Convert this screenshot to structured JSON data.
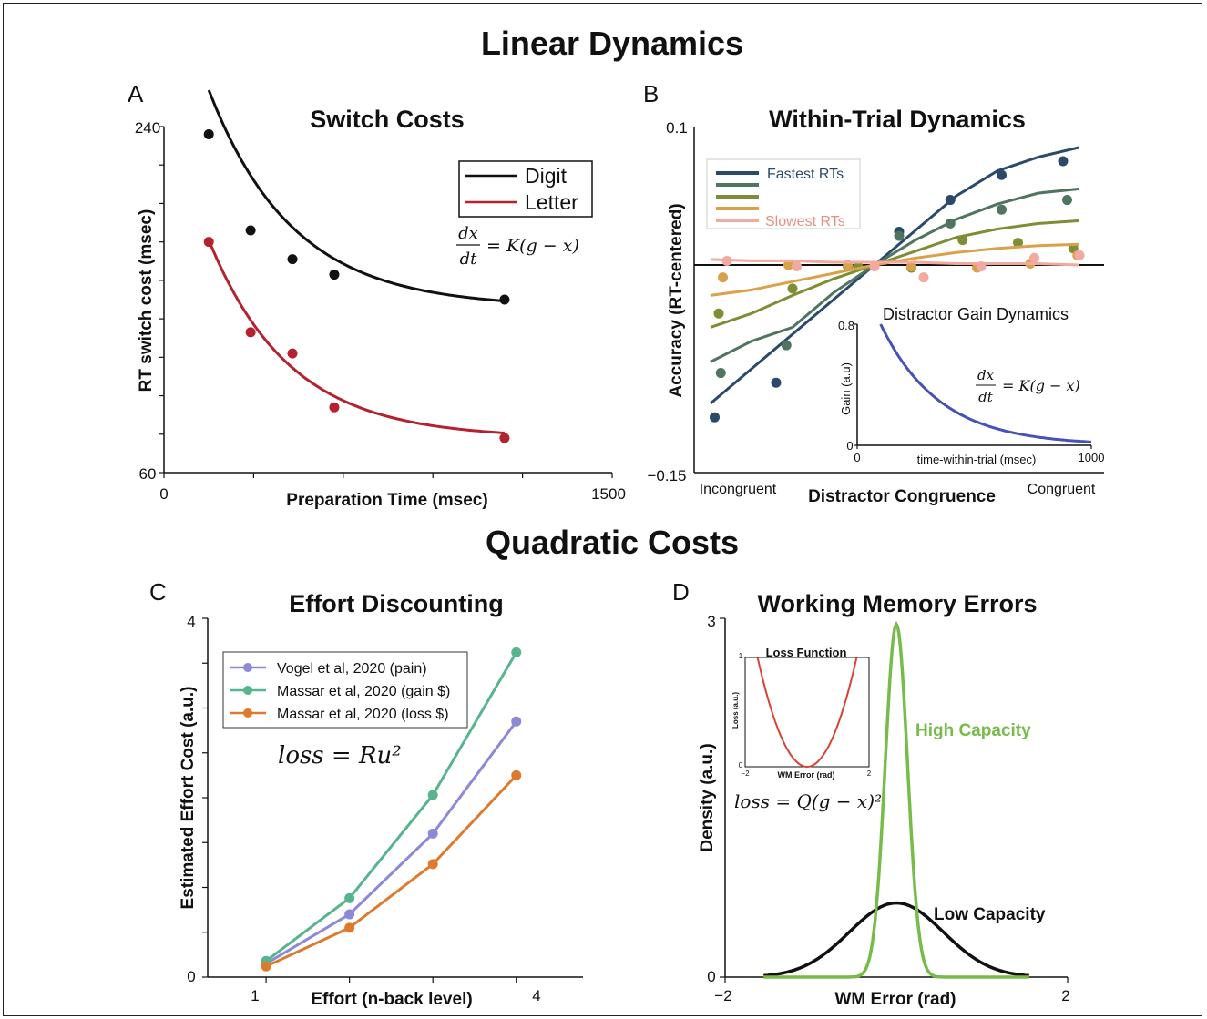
{
  "section_titles": {
    "top": "Linear Dynamics",
    "bottom": "Quadratic Costs"
  },
  "chart_data": [
    {
      "panel": "A",
      "type": "scatter",
      "title": "Switch Costs",
      "xlabel": "Preparation Time (msec)",
      "ylabel": "RT switch cost (msec)",
      "xlim": [
        0,
        1500
      ],
      "ylim": [
        60,
        240
      ],
      "xticks": [
        "0",
        "1500"
      ],
      "yticks": [
        "60",
        "240"
      ],
      "equation": {
        "num": "dx",
        "den": "dt",
        "rhs": "= K(g − x)"
      },
      "legend_position": "top-right",
      "series": [
        {
          "name": "Digit",
          "color": "#111111",
          "points": [
            [
              150,
              236
            ],
            [
              290,
              186
            ],
            [
              430,
              171
            ],
            [
              570,
              163
            ],
            [
              1140,
              150
            ]
          ],
          "fit": {
            "c": 146,
            "a": 113,
            "tau": 280,
            "x0": 150,
            "x1": 1140
          }
        },
        {
          "name": "Letter",
          "color": "#b5212e",
          "points": [
            [
              150,
              180
            ],
            [
              290,
              133
            ],
            [
              430,
              122
            ],
            [
              570,
              94
            ],
            [
              1140,
              78
            ]
          ],
          "fit": {
            "c": 78,
            "a": 103,
            "tau": 270,
            "x0": 150,
            "x1": 1140
          }
        }
      ]
    },
    {
      "panel": "B",
      "type": "line",
      "title": "Within-Trial Dynamics",
      "xlabel": "Distractor Congruence",
      "ylabel": "Accuracy (RT-centered)",
      "xlim": [
        0,
        1
      ],
      "ylim": [
        -0.15,
        0.1
      ],
      "yticks": [
        "0.1",
        "−0.15"
      ],
      "x_end_labels": [
        "Incongruent",
        "Congruent"
      ],
      "legend_position": "top-left",
      "legend": [
        "Fastest RTs",
        "",
        "",
        "",
        "Slowest RTs"
      ],
      "series": [
        {
          "color": "#2b4a6b",
          "line": [
            -0.1,
            -0.075,
            -0.05,
            -0.025,
            0.0,
            0.025,
            0.05,
            0.068,
            0.078,
            0.085
          ],
          "dots": [
            [
              0.05,
              -0.11
            ],
            [
              0.2,
              -0.085
            ],
            [
              0.375,
              -0.001
            ],
            [
              0.5,
              0.024
            ],
            [
              0.625,
              0.047
            ],
            [
              0.75,
              0.065
            ],
            [
              0.9,
              0.075
            ]
          ]
        },
        {
          "color": "#4f7560",
          "line": [
            -0.07,
            -0.055,
            -0.045,
            -0.02,
            0.0,
            0.018,
            0.033,
            0.044,
            0.052,
            0.055
          ],
          "dots": [
            [
              0.065,
              -0.078
            ],
            [
              0.225,
              -0.058
            ],
            [
              0.375,
              -0.001
            ],
            [
              0.5,
              0.021
            ],
            [
              0.625,
              0.03
            ],
            [
              0.75,
              0.04
            ],
            [
              0.91,
              0.047
            ]
          ]
        },
        {
          "color": "#7d8e36",
          "line": [
            -0.045,
            -0.035,
            -0.022,
            -0.01,
            0.0,
            0.01,
            0.02,
            0.026,
            0.03,
            0.032
          ],
          "dots": [
            [
              0.06,
              -0.035
            ],
            [
              0.24,
              -0.017
            ],
            [
              0.4,
              -0.001
            ],
            [
              0.53,
              -0.002
            ],
            [
              0.655,
              0.018
            ],
            [
              0.79,
              0.016
            ],
            [
              0.925,
              0.012
            ]
          ]
        },
        {
          "color": "#d9a24a",
          "line": [
            -0.022,
            -0.018,
            -0.012,
            -0.006,
            0.0,
            0.005,
            0.009,
            0.012,
            0.014,
            0.015
          ],
          "dots": [
            [
              0.07,
              -0.009
            ],
            [
              0.23,
              0.0
            ],
            [
              0.375,
              0.0
            ],
            [
              0.53,
              -0.001
            ],
            [
              0.69,
              -0.002
            ],
            [
              0.82,
              0.001
            ],
            [
              0.935,
              0.007
            ]
          ]
        },
        {
          "color": "#f2aaa0",
          "line": [
            0.004,
            0.003,
            0.003,
            0.002,
            0.002,
            0.002,
            0.001,
            0.001,
            0.001,
            0.0
          ],
          "dots": [
            [
              0.08,
              0.003
            ],
            [
              0.25,
              -0.001
            ],
            [
              0.44,
              -0.001
            ],
            [
              0.56,
              -0.009
            ],
            [
              0.7,
              -0.001
            ],
            [
              0.83,
              0.005
            ],
            [
              0.94,
              0.007
            ]
          ]
        }
      ],
      "inset": {
        "title": "Distractor Gain Dynamics",
        "xlabel": "time-within-trial (msec)",
        "ylabel": "Gain (a.u)",
        "xlim": [
          0,
          1000
        ],
        "ylim": [
          0,
          0.8
        ],
        "xticks": [
          "0",
          "1000"
        ],
        "yticks": [
          "0.8",
          "0"
        ],
        "equation": {
          "num": "dx",
          "den": "dt",
          "rhs": "= K(g − x)"
        },
        "curve": {
          "a": 0.8,
          "tau": 250,
          "x0": 0,
          "x1": 1000,
          "color": "#4652b5"
        }
      }
    },
    {
      "panel": "C",
      "type": "line",
      "title": "Effort Discounting",
      "xlabel": "Effort (n-back level)",
      "ylabel": "Estimated Effort Cost (a.u.)",
      "xlim": [
        0.3,
        4.8
      ],
      "ylim": [
        0,
        4
      ],
      "xticks": [
        "1",
        "4"
      ],
      "yticks": [
        "0",
        "4"
      ],
      "equation": "loss = Ru²",
      "legend_position": "top-left",
      "series": [
        {
          "name": "Vogel et al, 2020 (pain)",
          "color": "#8e89d6",
          "x": [
            1,
            2,
            3,
            4
          ],
          "y": [
            0.15,
            0.7,
            1.6,
            2.85
          ]
        },
        {
          "name": "Massar et al, 2020 (gain $)",
          "color": "#57b48e",
          "x": [
            1,
            2,
            3,
            4
          ],
          "y": [
            0.18,
            0.88,
            2.03,
            3.62
          ]
        },
        {
          "name": "Massar et al, 2020 (loss $)",
          "color": "#dd7a2e",
          "x": [
            1,
            2,
            3,
            4
          ],
          "y": [
            0.12,
            0.55,
            1.26,
            2.25
          ]
        }
      ]
    },
    {
      "panel": "D",
      "type": "line",
      "title": "Working Memory Errors",
      "xlabel": "WM Error (rad)",
      "ylabel": "Density (a.u.)",
      "xlim": [
        -2,
        2
      ],
      "ylim": [
        0,
        3
      ],
      "xticks": [
        "−2",
        "2"
      ],
      "yticks": [
        "0",
        "3"
      ],
      "series": [
        {
          "name": "High Capacity",
          "color": "#77bb4a",
          "mu": 0,
          "sigma": 0.13,
          "peak": 2.95
        },
        {
          "name": "Low Capacity",
          "color": "#111111",
          "mu": 0,
          "sigma": 0.55,
          "peak": 0.62
        }
      ],
      "inset": {
        "title": "Loss Function",
        "xlabel": "WM Error (rad)",
        "ylabel": "Loss (a.u.)",
        "xlim": [
          -2,
          2
        ],
        "ylim": [
          0,
          1
        ],
        "xticks": [
          "−2",
          "2"
        ],
        "yticks": [
          "1",
          "0"
        ],
        "color": "#d64236",
        "equation": "loss = Q(g − x)²"
      }
    }
  ]
}
